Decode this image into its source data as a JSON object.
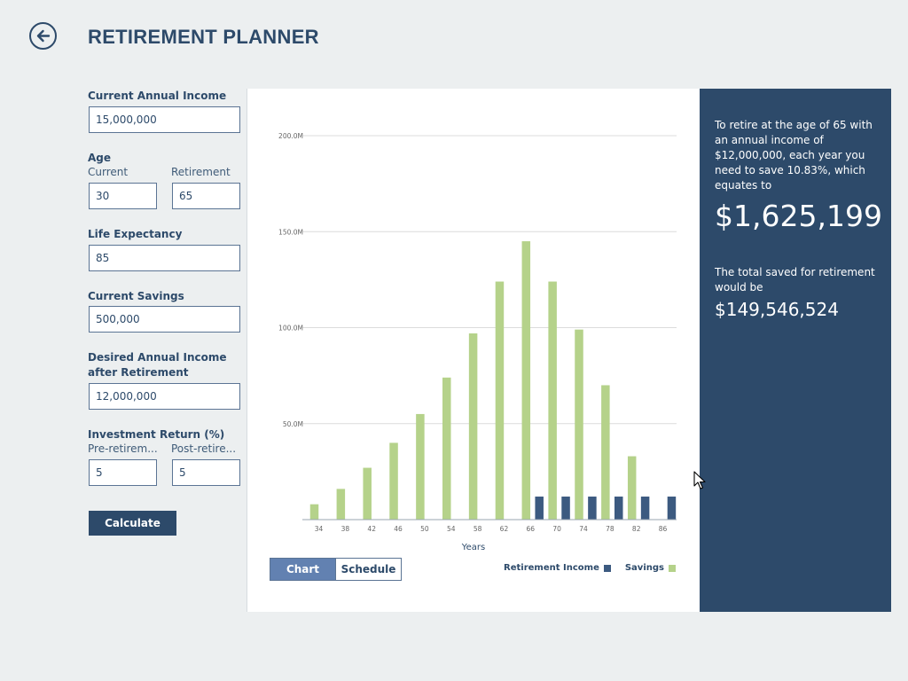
{
  "header": {
    "title": "RETIREMENT PLANNER",
    "back_icon": "arrow-left-circle-icon"
  },
  "form": {
    "income_label": "Current Annual Income",
    "income_value": "15,000,000",
    "age_label": "Age",
    "age_current_label": "Current",
    "age_retirement_label": "Retirement",
    "age_current_value": "30",
    "age_retirement_value": "65",
    "life_label": "Life Expectancy",
    "life_value": "85",
    "savings_label": "Current Savings",
    "savings_value": "500,000",
    "desired_label_1": "Desired Annual Income",
    "desired_label_2": "after Retirement",
    "desired_value": "12,000,000",
    "return_label": "Investment Return (%)",
    "pre_label": "Pre-retirem...",
    "post_label": "Post-retire...",
    "pre_value": "5",
    "post_value": "5",
    "calculate_label": "Calculate"
  },
  "chart_tabs": {
    "chart_label": "Chart",
    "schedule_label": "Schedule",
    "active": "Chart"
  },
  "colors": {
    "accent": "#2d4a6a",
    "savings": "#b5d28a",
    "retirement_income": "#3c5a80",
    "active_tab": "#6281b1"
  },
  "chart_data": {
    "type": "bar",
    "xlabel": "Years",
    "ylabel": "",
    "ylim": [
      0,
      200000000
    ],
    "y_ticks": [
      0,
      50000000,
      100000000,
      150000000,
      200000000
    ],
    "y_tick_labels": [
      "",
      "50.0M",
      "100.0M",
      "150.0M",
      "200.0M"
    ],
    "categories": [
      "34",
      "38",
      "42",
      "46",
      "50",
      "54",
      "58",
      "62",
      "66",
      "70",
      "74",
      "78",
      "82",
      "86"
    ],
    "grid": true,
    "legend_position": "bottom-right",
    "series": [
      {
        "name": "Savings",
        "color": "#b5d28a",
        "values": [
          8000000,
          16000000,
          27000000,
          40000000,
          55000000,
          74000000,
          97000000,
          124000000,
          145000000,
          124000000,
          99000000,
          70000000,
          33000000,
          0
        ]
      },
      {
        "name": "Retirement Income",
        "color": "#3c5a80",
        "values": [
          0,
          0,
          0,
          0,
          0,
          0,
          0,
          0,
          12000000,
          12000000,
          12000000,
          12000000,
          12000000,
          12000000
        ]
      }
    ]
  },
  "summary": {
    "intro_text": "To retire at the age of 65 with an annual income of $12,000,000, each year you need to save 10.83%, which equates to",
    "annual_amount": "$1,625,199",
    "total_text": "The total saved for retirement would be",
    "total_amount": "$149,546,524"
  }
}
